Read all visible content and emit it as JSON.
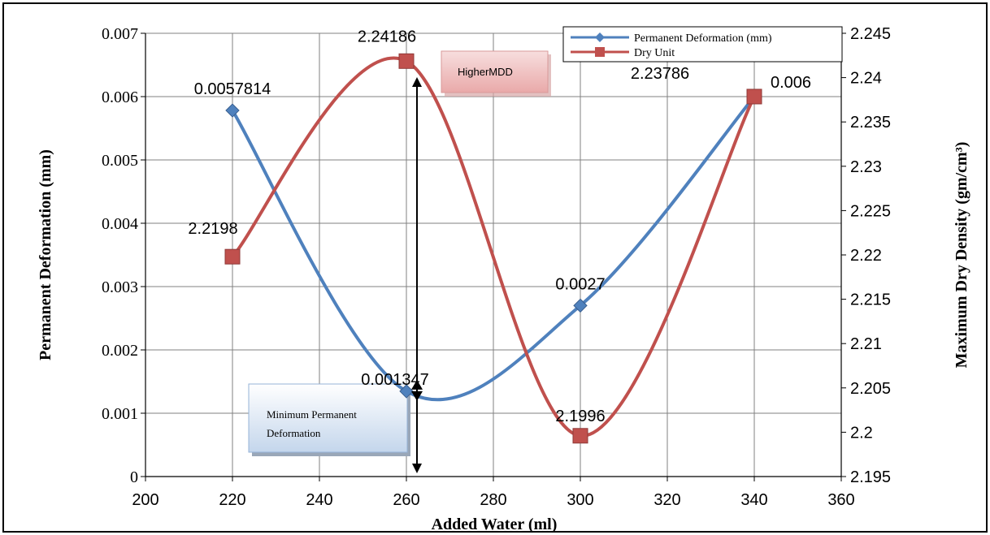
{
  "chart_data": {
    "type": "line",
    "x": [
      220,
      260,
      300,
      340
    ],
    "xlabel": "Added Water (ml)",
    "xlim": [
      200,
      360
    ],
    "xticks": [
      "200",
      "220",
      "240",
      "260",
      "280",
      "300",
      "320",
      "340",
      "360"
    ],
    "ylabel": "Permanent Deformation (mm)",
    "ylim": [
      0,
      0.007
    ],
    "yticks": [
      "0",
      "0.001",
      "0.002",
      "0.003",
      "0.004",
      "0.005",
      "0.006",
      "0.007"
    ],
    "y2label": "Maximum Dry Density (gm/cm³)",
    "y2lim": [
      2.195,
      2.245
    ],
    "y2ticks": [
      "2.195",
      "2.2",
      "2.205",
      "2.21",
      "2.215",
      "2.22",
      "2.225",
      "2.23",
      "2.235",
      "2.24",
      "2.245"
    ],
    "grid": true,
    "legend_position": "top-right",
    "series": [
      {
        "name": "Permanent Deformation (mm)",
        "axis": "left",
        "color": "#4F81BD",
        "marker": "diamond",
        "values": [
          0.0057814,
          0.001347,
          0.0027,
          0.006
        ],
        "labels": [
          "0.0057814",
          "0.001347",
          "0.0027",
          "0.006"
        ]
      },
      {
        "name": "Dry Unit",
        "axis": "right",
        "color": "#C0504D",
        "marker": "square",
        "values": [
          2.2198,
          2.24186,
          2.1996,
          2.23786
        ],
        "labels": [
          "2.2198",
          "2.24186",
          "2.1996",
          "2.23786"
        ]
      }
    ],
    "annotations": {
      "higher_mdd": "HigherMDD",
      "min_pd_line1": "Minimum Permanent",
      "min_pd_line2": "Deformation"
    }
  }
}
